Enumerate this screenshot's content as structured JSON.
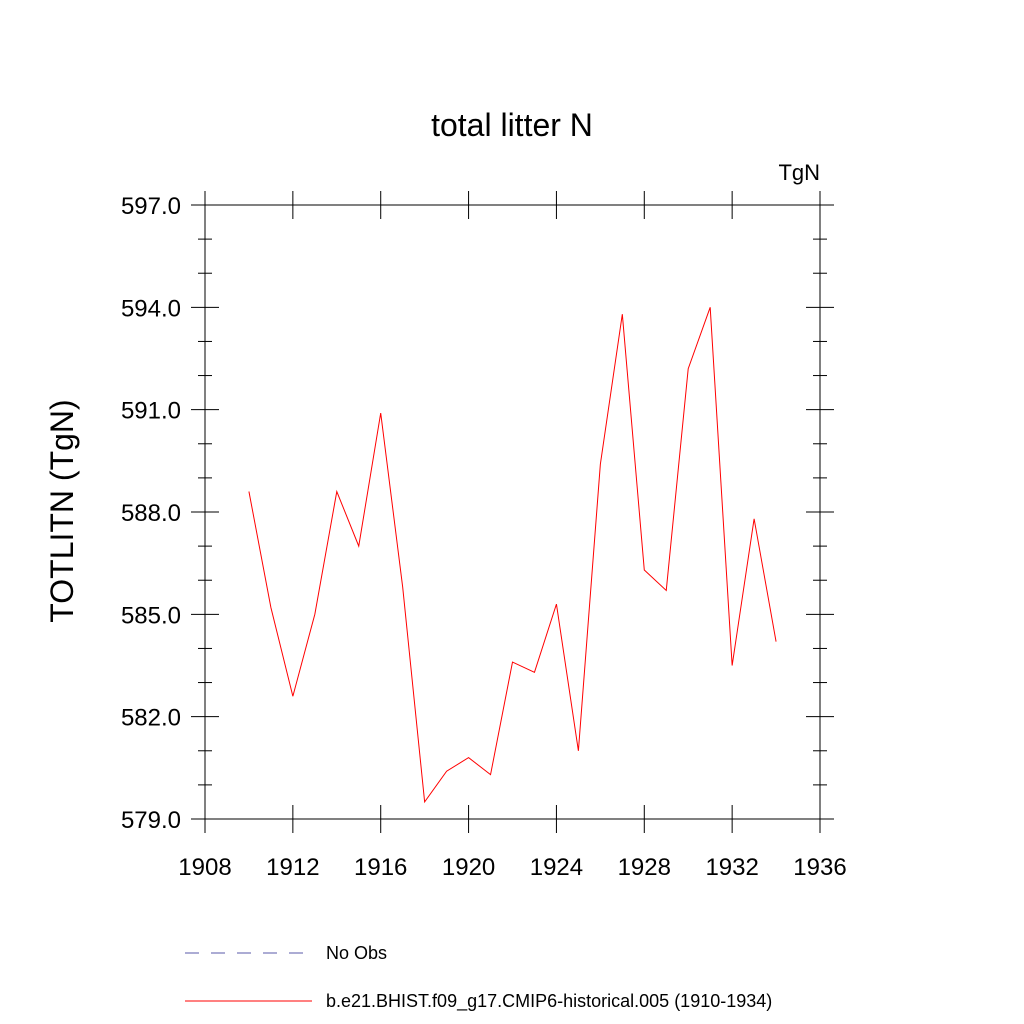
{
  "chart_data": {
    "type": "line",
    "title": "total litter N",
    "units_label": "TgN",
    "ylabel": "TOTLITN  (TgN)",
    "xlabel": "",
    "xlim": [
      1908,
      1936
    ],
    "ylim": [
      579.0,
      597.0
    ],
    "x_ticks": [
      1908,
      1912,
      1916,
      1920,
      1924,
      1928,
      1932,
      1936
    ],
    "x_tick_labels": [
      "1908",
      "1912",
      "1916",
      "1920",
      "1924",
      "1928",
      "1932",
      "1936"
    ],
    "y_ticks": [
      579.0,
      582.0,
      585.0,
      588.0,
      591.0,
      594.0,
      597.0
    ],
    "y_tick_labels": [
      "579.0",
      "582.0",
      "585.0",
      "588.0",
      "591.0",
      "594.0",
      "597.0"
    ],
    "grid": false,
    "legend_placement": "bottom",
    "series": [
      {
        "name": "No Obs",
        "color": "#5a5aa8",
        "style": "dashed",
        "x": [],
        "values": []
      },
      {
        "name": "b.e21.BHIST.f09_g17.CMIP6-historical.005 (1910-1934)",
        "color": "#ff0000",
        "style": "solid",
        "x": [
          1910,
          1911,
          1912,
          1913,
          1914,
          1915,
          1916,
          1917,
          1918,
          1919,
          1920,
          1921,
          1922,
          1923,
          1924,
          1925,
          1926,
          1927,
          1928,
          1929,
          1930,
          1931,
          1932,
          1933,
          1934
        ],
        "values": [
          588.6,
          585.2,
          582.6,
          585.0,
          588.6,
          587.0,
          590.9,
          585.8,
          579.5,
          580.4,
          580.8,
          580.3,
          583.6,
          583.3,
          585.3,
          581.0,
          589.4,
          593.8,
          586.3,
          585.7,
          592.2,
          594.0,
          583.5,
          587.8,
          584.2
        ]
      }
    ]
  }
}
